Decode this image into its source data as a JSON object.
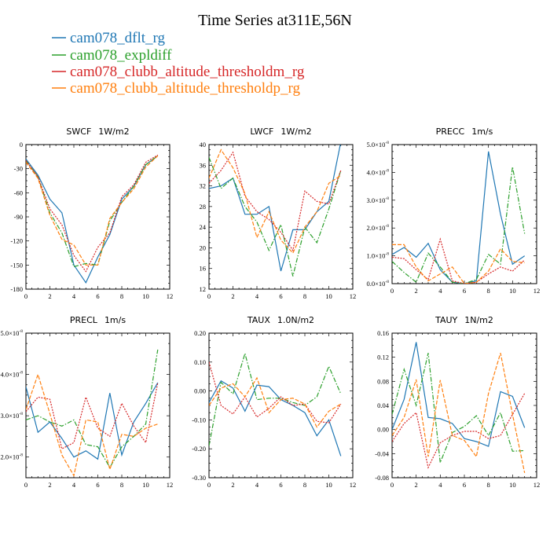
{
  "figure": {
    "title": "Time Series at311E,56N"
  },
  "series_styles": [
    {
      "name": "cam078_dflt_rg",
      "color": "#1f77b4",
      "dash": ""
    },
    {
      "name": "cam078_expldiff",
      "color": "#2ca02c",
      "dash": "6,2,1.5,2"
    },
    {
      "name": "cam078_clubb_altitude_thresholdm_rg",
      "color": "#d62728",
      "dash": "2,1.5"
    },
    {
      "name": "cam078_clubb_altitude_thresholdp_rg",
      "color": "#ff7f0e",
      "dash": "5,2"
    }
  ],
  "chart_data": [
    {
      "id": "swcf",
      "type": "line",
      "title": "SWCF",
      "units": "1W/m2",
      "x": [
        0,
        1,
        2,
        3,
        4,
        5,
        6,
        7,
        8,
        9,
        10,
        11
      ],
      "xlim": [
        0,
        12
      ],
      "ylim": [
        -180,
        0
      ],
      "xticks": [
        "0",
        "2",
        "4",
        "6",
        "8",
        "10",
        "12"
      ],
      "yticks": [
        "0",
        "-30",
        "-60",
        "-90",
        "-120",
        "-150",
        "-180"
      ],
      "ytick_values": [
        0,
        -30,
        -60,
        -90,
        -120,
        -150,
        -180
      ],
      "series": [
        {
          "name": "cam078_dflt_rg",
          "values": [
            -18,
            -38,
            -68,
            -85,
            -150,
            -172,
            -140,
            -112,
            -68,
            -52,
            -25,
            -14
          ]
        },
        {
          "name": "cam078_expldiff",
          "values": [
            -20,
            -40,
            -85,
            -110,
            -152,
            -148,
            -150,
            -95,
            -72,
            -52,
            -25,
            -14
          ]
        },
        {
          "name": "cam078_clubb_altitude_thresholdm_rg",
          "values": [
            -20,
            -40,
            -80,
            -100,
            -138,
            -158,
            -128,
            -110,
            -65,
            -50,
            -22,
            -13
          ]
        },
        {
          "name": "cam078_clubb_altitude_thresholdp_rg",
          "values": [
            -22,
            -42,
            -88,
            -118,
            -125,
            -150,
            -150,
            -92,
            -72,
            -55,
            -28,
            -14
          ]
        }
      ]
    },
    {
      "id": "lwcf",
      "type": "line",
      "title": "LWCF",
      "units": "1W/m2",
      "x": [
        0,
        1,
        2,
        3,
        4,
        5,
        6,
        7,
        8,
        9,
        10,
        11
      ],
      "xlim": [
        0,
        12
      ],
      "ylim": [
        12,
        40
      ],
      "xticks": [
        "0",
        "2",
        "4",
        "6",
        "8",
        "10",
        "12"
      ],
      "yticks": [
        "40",
        "36",
        "32",
        "28",
        "24",
        "20",
        "16",
        "12"
      ],
      "ytick_values": [
        40,
        36,
        32,
        28,
        24,
        20,
        16,
        12
      ],
      "series": [
        {
          "name": "cam078_dflt_rg",
          "values": [
            31.5,
            32,
            33.5,
            26.5,
            26.5,
            28,
            15.5,
            23.5,
            23.5,
            27,
            29,
            40.5
          ]
        },
        {
          "name": "cam078_expldiff",
          "values": [
            37.5,
            31.5,
            33.5,
            28,
            25,
            19.5,
            24.5,
            14.5,
            24,
            21,
            27.5,
            35
          ]
        },
        {
          "name": "cam078_clubb_altitude_thresholdm_rg",
          "values": [
            32.5,
            35,
            38.5,
            30,
            27,
            25.5,
            23,
            19.5,
            31,
            29,
            28.5,
            35
          ]
        },
        {
          "name": "cam078_clubb_altitude_thresholdp_rg",
          "values": [
            33.5,
            39,
            35.5,
            30.5,
            22,
            27,
            21.5,
            19,
            24,
            27,
            32.5,
            34
          ]
        }
      ]
    },
    {
      "id": "precc",
      "type": "line",
      "title": "PRECC",
      "units": "1m/s",
      "x": [
        0,
        1,
        2,
        3,
        4,
        5,
        6,
        7,
        8,
        9,
        10,
        11
      ],
      "xlim": [
        0,
        12
      ],
      "ylim": [
        0,
        5
      ],
      "y_scale_exponent": "-8",
      "xticks": [
        "0",
        "2",
        "4",
        "6",
        "8",
        "10",
        "12"
      ],
      "yticks": [
        "5.0×10",
        "4.0×10",
        "3.0×10",
        "2.0×10",
        "1.0×10",
        "0.0×10"
      ],
      "ytick_values": [
        5,
        4,
        3,
        2,
        1,
        0
      ],
      "series": [
        {
          "name": "cam078_dflt_rg",
          "values": [
            1.05,
            1.3,
            0.95,
            1.45,
            0.5,
            0.05,
            0.0,
            0.1,
            4.75,
            2.5,
            0.7,
            1.0
          ]
        },
        {
          "name": "cam078_expldiff",
          "values": [
            0.8,
            0.4,
            0.05,
            1.1,
            0.6,
            0.05,
            0.0,
            0.15,
            1.05,
            0.7,
            4.2,
            1.8
          ]
        },
        {
          "name": "cam078_clubb_altitude_thresholdm_rg",
          "values": [
            0.95,
            0.9,
            0.5,
            0.15,
            1.6,
            0.1,
            0.0,
            0.05,
            0.35,
            0.6,
            0.45,
            0.85
          ]
        },
        {
          "name": "cam078_clubb_altitude_thresholdp_rg",
          "values": [
            1.4,
            1.4,
            0.6,
            0.1,
            0.35,
            0.6,
            0.0,
            0.05,
            0.45,
            1.25,
            0.8,
            0.75
          ]
        }
      ]
    },
    {
      "id": "precl",
      "type": "line",
      "title": "PRECL",
      "units": "1m/s",
      "x": [
        0,
        1,
        2,
        3,
        4,
        5,
        6,
        7,
        8,
        9,
        10,
        11
      ],
      "xlim": [
        0,
        12
      ],
      "ylim": [
        1.5,
        5.0
      ],
      "y_scale_exponent": "-8",
      "xticks": [
        "0",
        "2",
        "4",
        "6",
        "8",
        "10",
        "12"
      ],
      "yticks": [
        "5.0×10",
        "4.0×10",
        "3.0×10",
        "2.0×10"
      ],
      "ytick_values": [
        5.0,
        4.0,
        3.0,
        2.0
      ],
      "series": [
        {
          "name": "cam078_dflt_rg",
          "values": [
            3.7,
            2.6,
            2.85,
            2.45,
            2.0,
            2.15,
            1.95,
            3.55,
            2.05,
            2.85,
            3.3,
            3.8
          ]
        },
        {
          "name": "cam078_expldiff",
          "values": [
            2.9,
            3.0,
            2.85,
            2.75,
            2.9,
            2.3,
            2.25,
            1.75,
            2.25,
            2.5,
            2.8,
            4.6
          ]
        },
        {
          "name": "cam078_clubb_altitude_thresholdm_rg",
          "values": [
            3.1,
            3.45,
            3.4,
            2.2,
            2.35,
            3.45,
            2.7,
            2.5,
            3.3,
            2.75,
            2.35,
            3.8
          ]
        },
        {
          "name": "cam078_clubb_altitude_thresholdp_rg",
          "values": [
            3.15,
            4.0,
            3.05,
            2.05,
            1.55,
            2.9,
            2.85,
            1.7,
            2.55,
            2.5,
            2.7,
            2.8
          ]
        }
      ]
    },
    {
      "id": "taux",
      "type": "line",
      "title": "TAUX",
      "units": "1.0N/m2",
      "x": [
        0,
        1,
        2,
        3,
        4,
        5,
        6,
        7,
        8,
        9,
        10,
        11
      ],
      "xlim": [
        0,
        12
      ],
      "ylim": [
        -0.3,
        0.2
      ],
      "xticks": [
        "0",
        "2",
        "4",
        "6",
        "8",
        "10",
        "12"
      ],
      "yticks": [
        "0.20",
        "0.10",
        "0.00",
        "-0.10",
        "-0.20",
        "-0.30"
      ],
      "ytick_values": [
        0.2,
        0.1,
        0.0,
        -0.1,
        -0.2,
        -0.3
      ],
      "series": [
        {
          "name": "cam078_dflt_rg",
          "values": [
            -0.04,
            0.035,
            0.01,
            -0.07,
            0.02,
            0.015,
            -0.03,
            -0.05,
            -0.075,
            -0.155,
            -0.1,
            -0.225
          ]
        },
        {
          "name": "cam078_expldiff",
          "values": [
            -0.19,
            0.03,
            -0.01,
            0.13,
            -0.03,
            -0.025,
            -0.025,
            -0.04,
            -0.05,
            -0.02,
            0.085,
            -0.01
          ]
        },
        {
          "name": "cam078_clubb_altitude_thresholdm_rg",
          "values": [
            0.1,
            -0.05,
            -0.08,
            -0.02,
            -0.09,
            -0.06,
            -0.02,
            -0.05,
            -0.045,
            -0.105,
            -0.11,
            -0.045
          ]
        },
        {
          "name": "cam078_clubb_altitude_thresholdp_rg",
          "values": [
            -0.05,
            0.01,
            0.025,
            -0.02,
            0.045,
            -0.075,
            -0.03,
            -0.025,
            -0.045,
            -0.125,
            -0.07,
            -0.045
          ]
        }
      ]
    },
    {
      "id": "tauy",
      "type": "line",
      "title": "TAUY",
      "units": "1N/m2",
      "x": [
        0,
        1,
        2,
        3,
        4,
        5,
        6,
        7,
        8,
        9,
        10,
        11
      ],
      "xlim": [
        0,
        12
      ],
      "ylim": [
        -0.08,
        0.16
      ],
      "xticks": [
        "0",
        "2",
        "4",
        "6",
        "8",
        "10",
        "12"
      ],
      "yticks": [
        "0.16",
        "0.12",
        "0.08",
        "0.04",
        "0.00",
        "-0.04",
        "-0.08"
      ],
      "ytick_values": [
        0.16,
        0.12,
        0.08,
        0.04,
        0.0,
        -0.04,
        -0.08
      ],
      "series": [
        {
          "name": "cam078_dflt_rg",
          "values": [
            0.0,
            0.05,
            0.145,
            0.02,
            0.018,
            0.01,
            -0.015,
            -0.02,
            -0.028,
            0.063,
            0.055,
            0.003
          ]
        },
        {
          "name": "cam078_expldiff",
          "values": [
            0.025,
            0.1,
            0.04,
            0.127,
            -0.055,
            -0.005,
            0.005,
            0.023,
            -0.01,
            0.028,
            -0.036,
            -0.035
          ]
        },
        {
          "name": "cam078_clubb_altitude_thresholdm_rg",
          "values": [
            -0.02,
            0.01,
            0.028,
            -0.063,
            -0.022,
            -0.01,
            -0.003,
            -0.003,
            -0.015,
            -0.01,
            0.025,
            0.06
          ]
        },
        {
          "name": "cam078_clubb_altitude_thresholdp_rg",
          "values": [
            -0.01,
            0.02,
            0.083,
            -0.045,
            0.082,
            -0.01,
            -0.018,
            -0.045,
            0.06,
            0.127,
            0.025,
            -0.072
          ]
        }
      ]
    }
  ]
}
